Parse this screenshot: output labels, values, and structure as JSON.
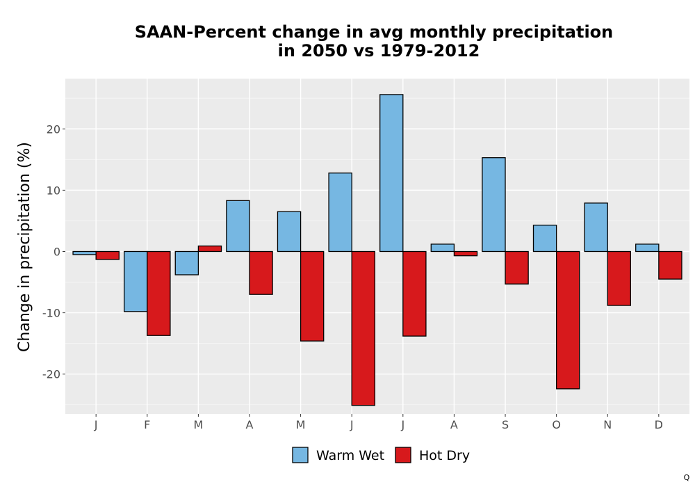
{
  "chart_data": {
    "type": "bar",
    "title": "SAAN-Percent change in avg monthly precipitation",
    "subtitle": "in 2050 vs 1979-2012",
    "xlabel": "",
    "ylabel": "Change in precipitation (%)",
    "categories": [
      "J",
      "F",
      "M",
      "A",
      "M",
      "J",
      "J",
      "A",
      "S",
      "O",
      "N",
      "D"
    ],
    "series": [
      {
        "name": "Warm Wet",
        "color": "#76b7e2",
        "values": [
          -0.5,
          -9.8,
          -3.8,
          8.3,
          6.5,
          12.8,
          25.6,
          1.2,
          15.3,
          4.3,
          7.9,
          1.2
        ]
      },
      {
        "name": "Hot Dry",
        "color": "#d7191c",
        "values": [
          -1.3,
          -13.7,
          0.9,
          -7.0,
          -14.6,
          -25.1,
          -13.8,
          -0.7,
          -5.3,
          -22.4,
          -8.8,
          -4.5
        ]
      }
    ],
    "ylim": [
      -26.5,
      28.2
    ],
    "yticks": [
      -20,
      -10,
      0,
      10,
      20
    ],
    "grid": true,
    "legend_position": "bottom"
  },
  "corner_mark": "Q"
}
